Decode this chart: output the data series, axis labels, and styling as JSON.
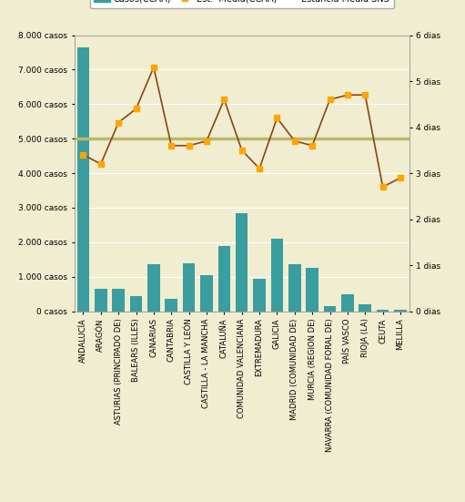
{
  "categories": [
    "ANDALUCÍA",
    "ARAGÓN",
    "ASTURIAS (PRINCIPADO DE)",
    "BALEARS (ILLES)",
    "CANARIAS",
    "CANTABRIA",
    "CASTILLA Y LEÓN",
    "CASTILLA - LA MANCHA",
    "CATALUÑA",
    "COMUNIDAD VALENCIANA",
    "EXTREMADURA",
    "GALICIA",
    "MADRID (COMUNIDAD DE)",
    "MURCIA (REGION DE)",
    "NAVARRA (COMUNIDAD FORAL DE)",
    "PAÍS VASCO",
    "RIOJA (LA)",
    "CEUTA",
    "MELILLA"
  ],
  "casos": [
    7650,
    650,
    650,
    450,
    1350,
    350,
    1400,
    1050,
    1900,
    2850,
    950,
    2100,
    1350,
    1250,
    150,
    500,
    200,
    50,
    30
  ],
  "estancia_media": [
    3.4,
    3.2,
    4.1,
    4.4,
    5.3,
    3.6,
    3.6,
    3.7,
    4.6,
    3.5,
    3.1,
    4.2,
    3.7,
    3.6,
    4.6,
    4.7,
    4.7,
    2.7,
    2.9
  ],
  "estancia_media_sns": 3.75,
  "bar_color": "#3a9da0",
  "line_color": "#8B4513",
  "marker_color": "#FFA500",
  "sns_color": "#BDB76B",
  "background_color": "#F0EDD0",
  "plot_bg_color": "#F0EDD0",
  "ylim_left": [
    0,
    8000
  ],
  "ylim_right": [
    0,
    6
  ],
  "yticks_left": [
    0,
    1000,
    2000,
    3000,
    4000,
    5000,
    6000,
    7000,
    8000
  ],
  "ytick_labels_left": [
    "0 casos",
    "1.000 casos",
    "2.000 casos",
    "3.000 casos",
    "4.000 casos",
    "5.000 casos",
    "6.000 casos",
    "7.000 casos",
    "8.000 casos"
  ],
  "yticks_right": [
    0,
    1,
    2,
    3,
    4,
    5,
    6
  ],
  "ytick_labels_right": [
    "0 dias",
    "1 dias",
    "2 dias",
    "3 dias",
    "4 dias",
    "5 dias",
    "6 dias"
  ]
}
